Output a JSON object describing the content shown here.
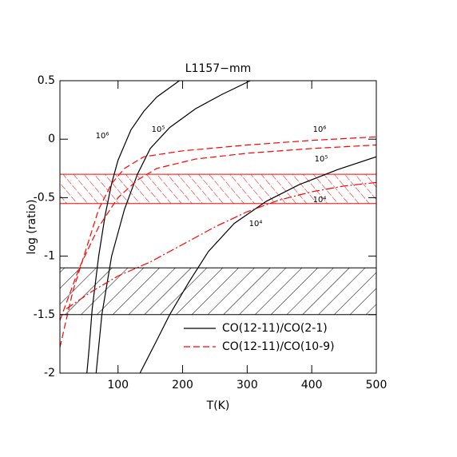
{
  "chart_data": {
    "type": "line",
    "title": "L1157−mm",
    "xlabel": "T(K)",
    "ylabel": "log (ratio)",
    "xlim": [
      10,
      500
    ],
    "ylim": [
      -2,
      0.5
    ],
    "xticks": [
      100,
      200,
      300,
      400,
      500
    ],
    "yticks": [
      -2,
      -1.5,
      -1,
      -0.5,
      0,
      0.5
    ],
    "bands": [
      {
        "ymin": -1.5,
        "ymax": -1.1,
        "color": "#000000"
      },
      {
        "ymin": -0.55,
        "ymax": -0.3,
        "color": "#ff0000"
      }
    ],
    "series": [
      {
        "name": "CO(12-11)/CO(2-1)",
        "color": "#000000",
        "dash": "solid",
        "curves": [
          {
            "label": "10⁶",
            "x": [
              51,
              55,
              60,
              70,
              80,
              90,
              100,
              120,
              140,
              160,
              195
            ],
            "values": [
              -2.05,
              -1.8,
              -1.45,
              -1.0,
              -0.65,
              -0.38,
              -0.18,
              0.08,
              0.24,
              0.36,
              0.5
            ]
          },
          {
            "label": "10⁵",
            "x": [
              66,
              75,
              90,
              110,
              130,
              150,
              180,
              220,
              260,
              305
            ],
            "values": [
              -2.0,
              -1.5,
              -1.0,
              -0.6,
              -0.3,
              -0.08,
              0.1,
              0.26,
              0.38,
              0.5
            ]
          },
          {
            "label": "10⁴",
            "x": [
              134,
              160,
              180,
              210,
              240,
              280,
              330,
              380,
              440,
              500
            ],
            "values": [
              -2.0,
              -1.72,
              -1.5,
              -1.22,
              -0.96,
              -0.72,
              -0.53,
              -0.39,
              -0.26,
              -0.15
            ]
          }
        ]
      },
      {
        "name": "CO(12-11)/CO(10-9)",
        "color": "#ff0000",
        "dash": "dashed",
        "curves": [
          {
            "label": "10⁶",
            "x": [
              10,
              30,
              50,
              70,
              90,
              110,
              140,
              200,
              300,
              400,
              500
            ],
            "values": [
              -1.78,
              -1.3,
              -0.95,
              -0.6,
              -0.38,
              -0.25,
              -0.15,
              -0.1,
              -0.05,
              -0.01,
              0.02
            ]
          },
          {
            "label": "10⁵",
            "x": [
              10,
              40,
              70,
              100,
              130,
              160,
              220,
              300,
              400,
              500
            ],
            "values": [
              -1.55,
              -1.1,
              -0.75,
              -0.5,
              -0.35,
              -0.25,
              -0.17,
              -0.12,
              -0.08,
              -0.05
            ]
          },
          {
            "label": "10⁴",
            "x": [
              20,
              60,
              100,
              150,
              200,
              250,
              300,
              350,
              400,
              450,
              500
            ],
            "values": [
              -1.45,
              -1.3,
              -1.17,
              -1.05,
              -0.9,
              -0.75,
              -0.62,
              -0.52,
              -0.45,
              -0.4,
              -0.37
            ]
          }
        ]
      }
    ]
  }
}
